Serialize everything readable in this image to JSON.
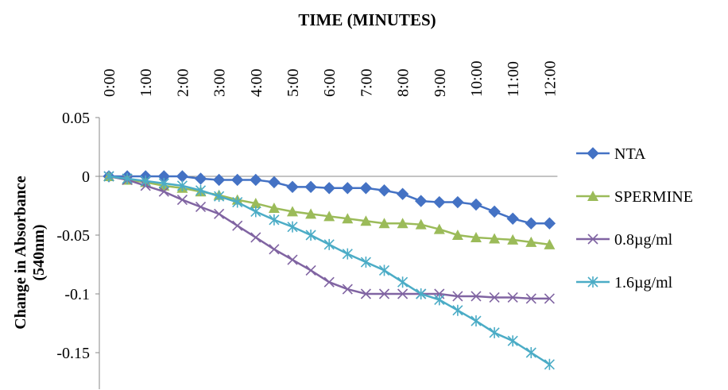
{
  "chart_data": {
    "type": "line",
    "title": "TIME (MINUTES)",
    "y_label": "Change in Absorbance (540nm)",
    "categories": [
      "0:00",
      null,
      "1:00",
      null,
      "2:00",
      null,
      "3:00",
      null,
      "4:00",
      null,
      "5:00",
      null,
      "6:00",
      null,
      "7:00",
      null,
      "8:00",
      null,
      "9:00",
      null,
      "10:00",
      null,
      "11:00",
      null,
      "12:00"
    ],
    "ylim": [
      -0.175,
      0.05
    ],
    "yticks": [
      0.05,
      0,
      -0.05,
      -0.1,
      -0.15
    ],
    "legend": "right",
    "series": [
      {
        "name": "NTA",
        "color": "#4472c4",
        "marker": "diamond",
        "values": [
          0,
          0,
          0,
          0,
          0,
          -0.002,
          -0.003,
          -0.003,
          -0.003,
          -0.005,
          -0.009,
          -0.009,
          -0.01,
          -0.01,
          -0.01,
          -0.012,
          -0.015,
          -0.021,
          -0.022,
          -0.022,
          -0.024,
          -0.03,
          -0.036,
          -0.04,
          -0.04
        ]
      },
      {
        "name": "SPERMINE",
        "color": "#9bbb59",
        "marker": "triangle",
        "values": [
          0,
          -0.003,
          -0.005,
          -0.008,
          -0.01,
          -0.013,
          -0.016,
          -0.02,
          -0.023,
          -0.027,
          -0.03,
          -0.032,
          -0.034,
          -0.036,
          -0.038,
          -0.04,
          -0.04,
          -0.041,
          -0.045,
          -0.05,
          -0.052,
          -0.053,
          -0.054,
          -0.056,
          -0.058
        ]
      },
      {
        "name": "0.8µg/ml",
        "color": "#8064a2",
        "marker": "x",
        "values": [
          0,
          -0.003,
          -0.008,
          -0.013,
          -0.02,
          -0.026,
          -0.032,
          -0.042,
          -0.052,
          -0.062,
          -0.071,
          -0.08,
          -0.09,
          -0.096,
          -0.1,
          -0.1,
          -0.1,
          -0.1,
          -0.1,
          -0.102,
          -0.102,
          -0.103,
          -0.103,
          -0.104,
          -0.104
        ]
      },
      {
        "name": "1.6µg/ml",
        "color": "#4bacc6",
        "marker": "star",
        "values": [
          0,
          -0.002,
          -0.004,
          -0.006,
          -0.008,
          -0.012,
          -0.017,
          -0.022,
          -0.03,
          -0.037,
          -0.043,
          -0.05,
          -0.058,
          -0.066,
          -0.073,
          -0.08,
          -0.09,
          -0.1,
          -0.105,
          -0.114,
          -0.123,
          -0.133,
          -0.14,
          -0.15,
          -0.16
        ]
      }
    ]
  }
}
